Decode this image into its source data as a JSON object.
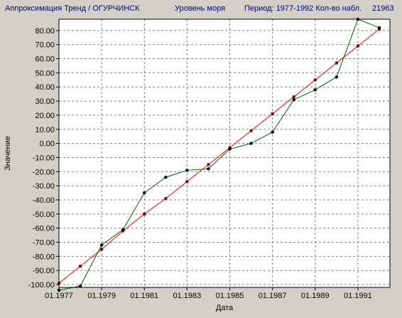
{
  "header": {
    "title": "Аппроксимация Тренд / ОГУРЧИНСК",
    "parameter": "Уровень моря",
    "period": "Период:  1977-1992 Кол-во набл.",
    "count": "21963"
  },
  "colors": {
    "background": "#d4d0c8",
    "plot_background": "#ffffff",
    "observed_line": "#006400",
    "trend_line": "#ff0000",
    "observed_marker": "#000000",
    "trend_marker": "#8b0000",
    "header_text": "#000080"
  },
  "chart_data": {
    "type": "line",
    "title": "",
    "xlabel": "Дата",
    "ylabel": "Значение",
    "xlim": [
      1977,
      1992.5
    ],
    "ylim": [
      -102,
      88
    ],
    "grid": true,
    "legend": "none",
    "x_tick_values": [
      1977,
      1979,
      1981,
      1983,
      1985,
      1987,
      1989,
      1991
    ],
    "x_tick_labels": [
      "01.1977",
      "01.1979",
      "01.1981",
      "01.1983",
      "01.1985",
      "01.1987",
      "01.1989",
      "01.1991"
    ],
    "y_ticks": [
      80,
      70,
      60,
      50,
      40,
      30,
      20,
      10,
      0,
      -10,
      -20,
      -30,
      -40,
      -50,
      -60,
      -70,
      -80,
      -90,
      -100
    ],
    "y_tick_labels": [
      "80.00",
      "70.00",
      "60.00",
      "50.00",
      "40.00",
      "30.00",
      "20.00",
      "10.00",
      "0.00",
      "-10.00",
      "-20.00",
      "-30.00",
      "-40.00",
      "-50.00",
      "-60.00",
      "-70.00",
      "-80.00",
      "-90.00",
      "-100.00"
    ],
    "series": [
      {
        "key": "observed",
        "x": [
          1977,
          1978,
          1979,
          1980,
          1981,
          1982,
          1983,
          1984,
          1985,
          1986,
          1987,
          1988,
          1989,
          1990,
          1991,
          1992
        ],
        "y": [
          -104,
          -101,
          -72,
          -61,
          -35,
          -24,
          -19,
          -18,
          -4,
          0,
          8,
          31,
          38,
          47,
          88,
          82
        ]
      },
      {
        "key": "trend",
        "x": [
          1977,
          1978,
          1979,
          1980,
          1981,
          1982,
          1983,
          1984,
          1985,
          1986,
          1987,
          1988,
          1989,
          1990,
          1991,
          1992
        ],
        "y": [
          -99,
          -87,
          -75,
          -62,
          -50,
          -39,
          -27,
          -15,
          -3,
          9,
          21,
          33,
          45,
          57,
          69,
          81
        ]
      }
    ]
  }
}
